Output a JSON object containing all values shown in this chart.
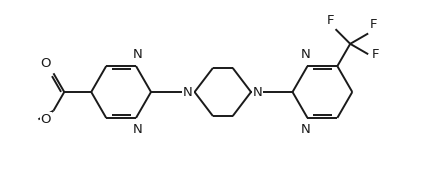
{
  "bg_color": "#ffffff",
  "line_color": "#1a1a1a",
  "line_width": 1.4,
  "font_size": 9.5,
  "fig_width": 4.29,
  "fig_height": 1.84,
  "dpi": 100,
  "xlim": [
    -0.3,
    9.8
  ],
  "ylim": [
    -1.2,
    3.2
  ]
}
